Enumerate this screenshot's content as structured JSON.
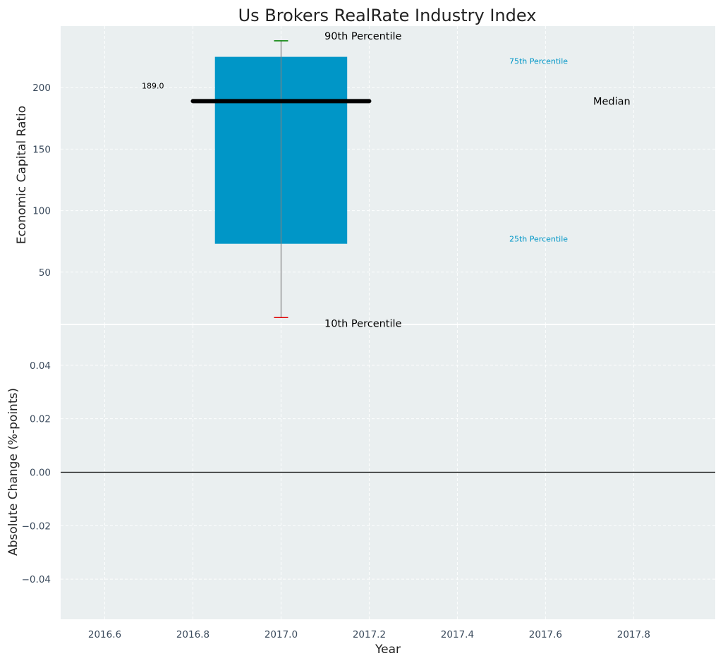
{
  "colors": {
    "panel_bg": "#eaeff0",
    "grid": "#ffffff",
    "box_fill": "#0096c7",
    "median": "#000000",
    "whisker_line": "#808080",
    "whisker_top": "#008000",
    "whisker_bottom": "#e00000",
    "percentile_label": "#0096c7"
  },
  "chart_data": [
    {
      "type": "box",
      "title": "Us Brokers RealRate Industry Index",
      "ylabel": "Economic Capital Ratio",
      "x": 2017,
      "box_width": 0.3,
      "p10": 13,
      "p25": 73,
      "median": 189,
      "p75": 225,
      "p90": 238,
      "median_line_range": [
        2016.8,
        2017.2
      ],
      "median_value_label": "189.0",
      "ylim": [
        8,
        250
      ],
      "yticks": [
        50,
        100,
        150,
        200
      ],
      "annotations": {
        "p90_label": "90th Percentile",
        "p10_label": "10th Percentile",
        "p75_label": "75th Percentile",
        "p25_label": "25th Percentile",
        "median_label": "Median"
      }
    },
    {
      "type": "line",
      "xlabel": "Year",
      "ylabel": "Absolute Change (%-points)",
      "ylim": [
        -0.055,
        0.055
      ],
      "yticks": [
        -0.04,
        -0.02,
        0.0,
        0.02,
        0.04
      ],
      "ytick_labels": [
        "−0.04",
        "−0.02",
        "0.00",
        "0.02",
        "0.04"
      ],
      "zero_line": 0,
      "series": []
    }
  ],
  "shared_x": {
    "xlim": [
      2016.5,
      2017.985
    ],
    "xticks": [
      2016.6,
      2016.8,
      2017.0,
      2017.2,
      2017.4,
      2017.6,
      2017.8
    ],
    "xtick_labels": [
      "2016.6",
      "2016.8",
      "2017.0",
      "2017.2",
      "2017.4",
      "2017.6",
      "2017.8"
    ]
  }
}
